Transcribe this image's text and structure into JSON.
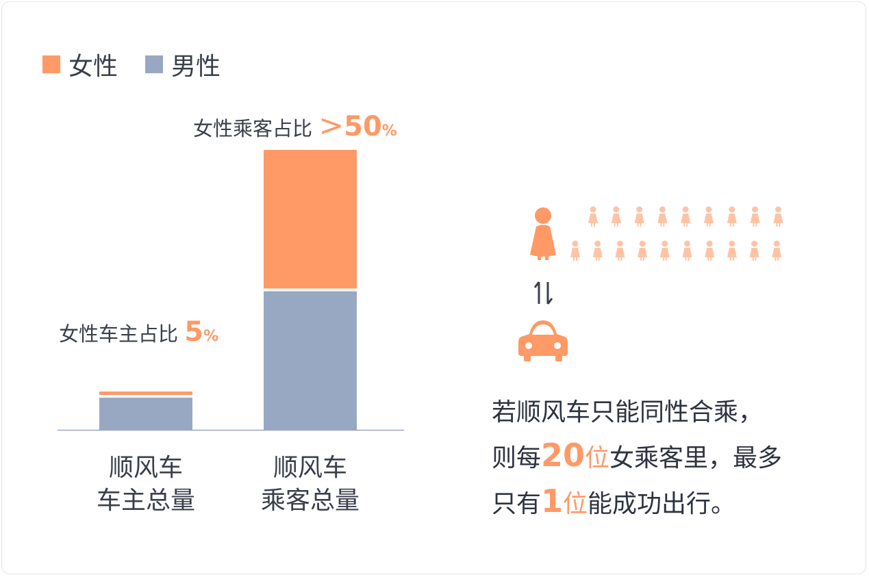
{
  "legend": {
    "female": {
      "label": "女性",
      "color": "#ff9966"
    },
    "male": {
      "label": "男性",
      "color": "#98a8c3"
    }
  },
  "chart_data": {
    "type": "bar",
    "stacked": true,
    "categories": [
      "顺风车\n车主总量",
      "顺风车\n乘客总量"
    ],
    "series": [
      {
        "name": "男性",
        "values": [
          95,
          50
        ]
      },
      {
        "name": "女性",
        "values": [
          5,
          50
        ]
      }
    ],
    "annotations": [
      {
        "category": "顺风车车主总量",
        "text": "女性车主占比",
        "value": "5",
        "unit": "%"
      },
      {
        "category": "顺风车乘客总量",
        "text": "女性乘客占比",
        "prefix": ">",
        "value": "50",
        "unit": "%"
      }
    ],
    "grid": false
  },
  "labels": {
    "driver_line1": "顺风车",
    "driver_line2": "车主总量",
    "passenger_line1": "顺风车",
    "passenger_line2": "乘客总量",
    "driver_annot": "女性车主占比",
    "driver_pct": "5",
    "driver_unit": "%",
    "passenger_annot": "女性乘客占比",
    "passenger_gt": ">",
    "passenger_pct": "50",
    "passenger_unit": "%"
  },
  "illustration": {
    "big_person_icon": "female-person-icon",
    "small_person_count": 19,
    "swap_icon": "swap-arrows-icon",
    "car_icon": "car-icon",
    "accent": "#ff9966",
    "accent_light": "#ffc4a6"
  },
  "message": {
    "line1": "若顺风车只能同性合乘，",
    "line2_a": "则每",
    "line2_num": "20",
    "line2_unit": "位",
    "line2_b": "女乘客里，最多",
    "line3_a": "只有",
    "line3_num": "1",
    "line3_unit": "位",
    "line3_b": "能成功出行。"
  }
}
